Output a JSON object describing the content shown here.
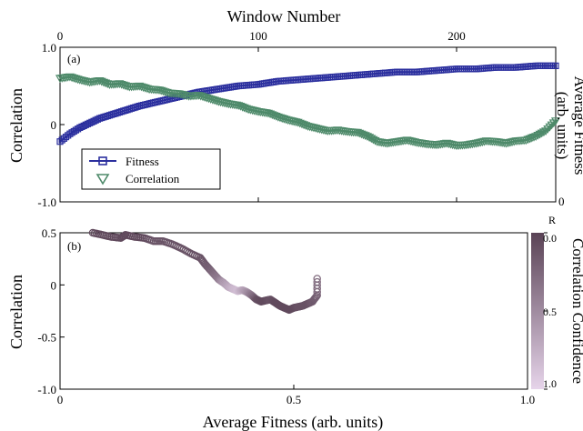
{
  "chart_data": [
    {
      "type": "line",
      "panel_label": "(a)",
      "title": "",
      "x_label": "Window Number",
      "x_ticks": [
        "0",
        "100",
        "200"
      ],
      "x_tick_values": [
        0,
        100,
        200
      ],
      "xlim": [
        0,
        250
      ],
      "y_label": "Correlation",
      "y_ticks": [
        "1.0",
        "0",
        "-1.0"
      ],
      "y_tick_values": [
        1.0,
        0,
        -1.0
      ],
      "ylim": [
        -1.0,
        1.0
      ],
      "y2_label_line1": "Average Fitness",
      "y2_label_line2": "(arb. units)",
      "y2_ticks": [
        "0"
      ],
      "y2_tick_values": [
        0
      ],
      "y2lim": [
        0,
        1
      ],
      "legend_position": "bottom-left",
      "series": [
        {
          "name": "Fitness",
          "axis": "right",
          "marker": "square",
          "color": "#2b2f9e",
          "x": [
            0,
            5,
            10,
            15,
            20,
            30,
            40,
            50,
            60,
            70,
            80,
            90,
            100,
            110,
            120,
            130,
            140,
            150,
            160,
            170,
            180,
            190,
            200,
            210,
            220,
            230,
            240,
            250
          ],
          "y": [
            0.39,
            0.44,
            0.48,
            0.51,
            0.54,
            0.58,
            0.62,
            0.65,
            0.68,
            0.71,
            0.73,
            0.75,
            0.76,
            0.78,
            0.79,
            0.8,
            0.81,
            0.82,
            0.83,
            0.84,
            0.84,
            0.85,
            0.86,
            0.86,
            0.87,
            0.87,
            0.88,
            0.88
          ]
        },
        {
          "name": "Correlation",
          "axis": "left",
          "marker": "triangle-down",
          "color": "#4e8a6a",
          "x": [
            0,
            5,
            10,
            15,
            20,
            25,
            30,
            35,
            40,
            45,
            50,
            55,
            60,
            65,
            70,
            75,
            80,
            85,
            90,
            95,
            100,
            105,
            110,
            115,
            120,
            125,
            130,
            135,
            140,
            145,
            150,
            155,
            160,
            165,
            170,
            175,
            180,
            185,
            190,
            195,
            200,
            205,
            210,
            215,
            220,
            225,
            230,
            235,
            240,
            245,
            250
          ],
          "y": [
            0.6,
            0.62,
            0.58,
            0.55,
            0.57,
            0.52,
            0.53,
            0.49,
            0.5,
            0.46,
            0.45,
            0.41,
            0.4,
            0.37,
            0.38,
            0.34,
            0.3,
            0.27,
            0.25,
            0.2,
            0.17,
            0.15,
            0.1,
            0.06,
            0.03,
            -0.02,
            -0.05,
            -0.08,
            -0.07,
            -0.09,
            -0.1,
            -0.15,
            -0.22,
            -0.24,
            -0.22,
            -0.2,
            -0.23,
            -0.25,
            -0.26,
            -0.24,
            -0.27,
            -0.26,
            -0.24,
            -0.21,
            -0.22,
            -0.24,
            -0.21,
            -0.2,
            -0.15,
            -0.08,
            0.05
          ]
        }
      ]
    },
    {
      "type": "scatter",
      "panel_label": "(b)",
      "title": "",
      "x_label": "Average Fitness (arb. units)",
      "x_ticks": [
        "0",
        "0.5",
        "1.0"
      ],
      "x_tick_values": [
        0,
        0.5,
        1.0
      ],
      "xlim": [
        0,
        1.0
      ],
      "y_label": "Correlation",
      "y_ticks": [
        "0.5",
        "0",
        "-0.5",
        "-1.0"
      ],
      "y_tick_values": [
        0.5,
        0,
        -0.5,
        -1.0
      ],
      "ylim": [
        -1.0,
        0.5
      ],
      "colorbar_label": "Correlation Confidence",
      "colorbar_top_letter": "R",
      "colorbar_ticks": [
        "0.0",
        "0.5",
        "1.0"
      ],
      "colorbar_tick_values": [
        0.0,
        0.5,
        1.0
      ],
      "colorbar_colors": [
        "#5a4356",
        "#e6d4ea"
      ],
      "marker": "circle-open",
      "points": [
        {
          "x": 0.07,
          "y": 0.5,
          "c": 0.05
        },
        {
          "x": 0.09,
          "y": 0.48,
          "c": 0.05
        },
        {
          "x": 0.11,
          "y": 0.46,
          "c": 0.05
        },
        {
          "x": 0.13,
          "y": 0.45,
          "c": 0.05
        },
        {
          "x": 0.14,
          "y": 0.48,
          "c": 0.05
        },
        {
          "x": 0.16,
          "y": 0.46,
          "c": 0.05
        },
        {
          "x": 0.18,
          "y": 0.45,
          "c": 0.05
        },
        {
          "x": 0.2,
          "y": 0.42,
          "c": 0.1
        },
        {
          "x": 0.22,
          "y": 0.42,
          "c": 0.1
        },
        {
          "x": 0.24,
          "y": 0.39,
          "c": 0.1
        },
        {
          "x": 0.26,
          "y": 0.35,
          "c": 0.1
        },
        {
          "x": 0.28,
          "y": 0.3,
          "c": 0.1
        },
        {
          "x": 0.3,
          "y": 0.26,
          "c": 0.1
        },
        {
          "x": 0.31,
          "y": 0.2,
          "c": 0.15
        },
        {
          "x": 0.32,
          "y": 0.15,
          "c": 0.2
        },
        {
          "x": 0.33,
          "y": 0.1,
          "c": 0.3
        },
        {
          "x": 0.34,
          "y": 0.05,
          "c": 0.4
        },
        {
          "x": 0.35,
          "y": 0.02,
          "c": 0.6
        },
        {
          "x": 0.36,
          "y": -0.02,
          "c": 0.7
        },
        {
          "x": 0.37,
          "y": -0.04,
          "c": 0.8
        },
        {
          "x": 0.38,
          "y": -0.06,
          "c": 0.85
        },
        {
          "x": 0.39,
          "y": -0.05,
          "c": 0.7
        },
        {
          "x": 0.4,
          "y": -0.07,
          "c": 0.55
        },
        {
          "x": 0.41,
          "y": -0.1,
          "c": 0.35
        },
        {
          "x": 0.42,
          "y": -0.14,
          "c": 0.1
        },
        {
          "x": 0.43,
          "y": -0.16,
          "c": 0.05
        },
        {
          "x": 0.44,
          "y": -0.15,
          "c": 0.05
        },
        {
          "x": 0.45,
          "y": -0.14,
          "c": 0.1
        },
        {
          "x": 0.46,
          "y": -0.17,
          "c": 0.05
        },
        {
          "x": 0.47,
          "y": -0.2,
          "c": 0.05
        },
        {
          "x": 0.48,
          "y": -0.22,
          "c": 0.05
        },
        {
          "x": 0.49,
          "y": -0.24,
          "c": 0.05
        },
        {
          "x": 0.5,
          "y": -0.22,
          "c": 0.05
        },
        {
          "x": 0.51,
          "y": -0.21,
          "c": 0.1
        },
        {
          "x": 0.52,
          "y": -0.2,
          "c": 0.1
        },
        {
          "x": 0.53,
          "y": -0.18,
          "c": 0.1
        },
        {
          "x": 0.54,
          "y": -0.16,
          "c": 0.15
        },
        {
          "x": 0.55,
          "y": -0.1,
          "c": 0.2
        },
        {
          "x": 0.55,
          "y": 0.06,
          "c": 0.3
        }
      ]
    }
  ]
}
